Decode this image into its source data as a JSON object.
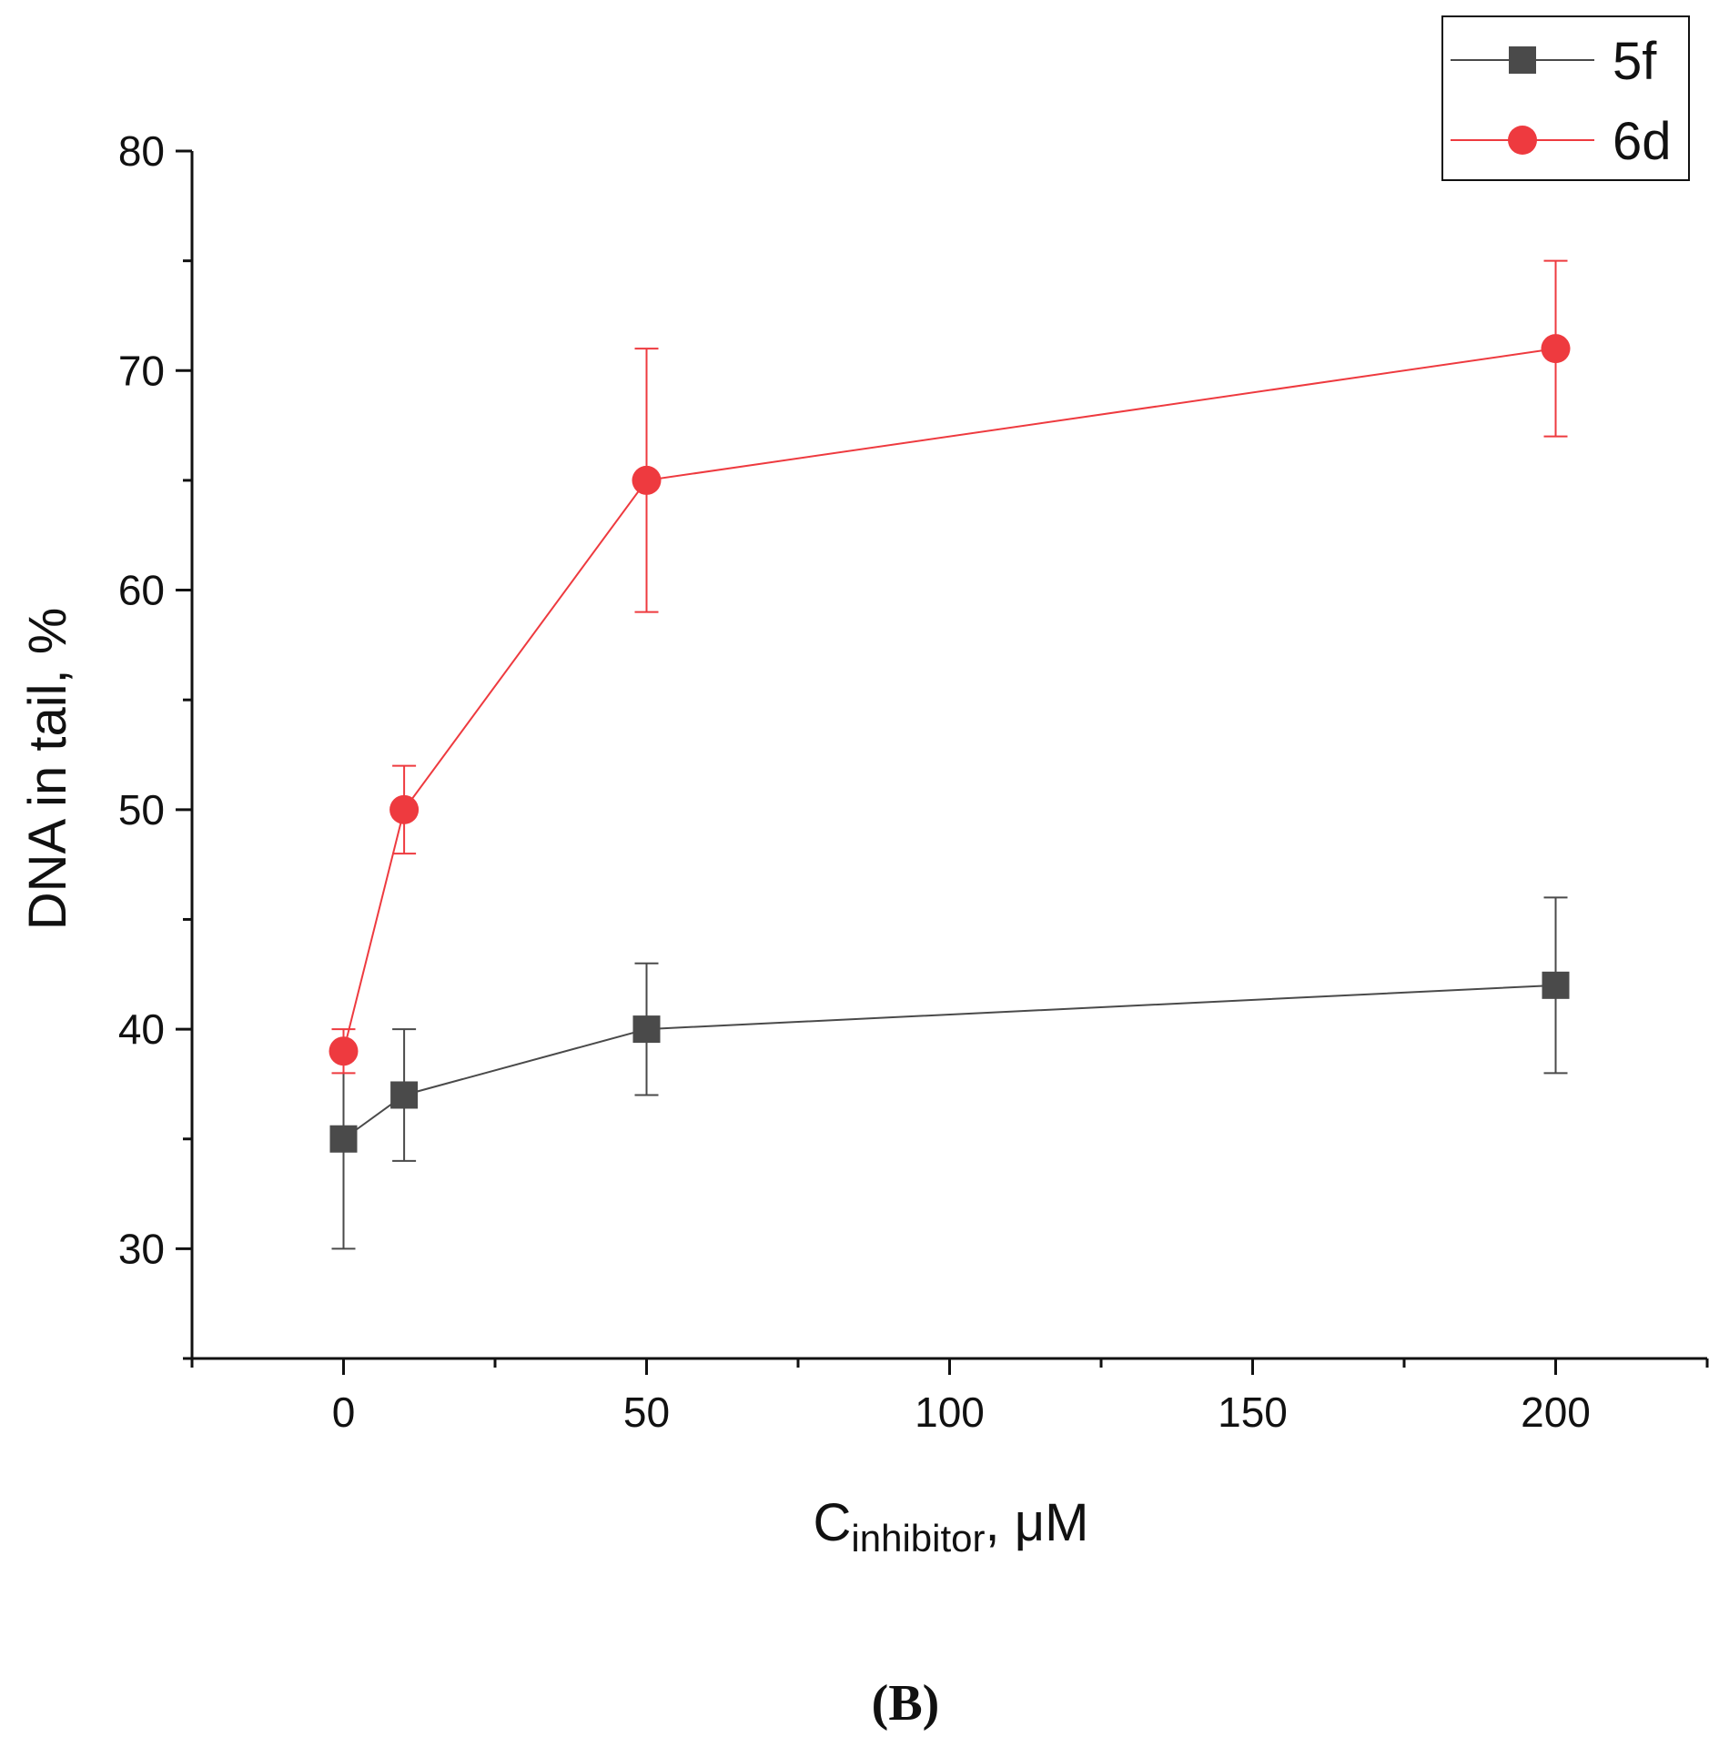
{
  "chart_data": {
    "type": "line",
    "x_label_main": "C",
    "x_label_sub": "inhibitor",
    "x_label_suffix": ", μM",
    "y_label": "DNA in tail, %",
    "panel_label": "(B)",
    "xlim": [
      -25,
      225
    ],
    "ylim": [
      25,
      80
    ],
    "x_ticks": [
      0,
      50,
      100,
      150,
      200
    ],
    "y_ticks": [
      30,
      40,
      50,
      60,
      70,
      80
    ],
    "legend_position": "top-right",
    "series": [
      {
        "name": "5f",
        "color": "#4a4a4a",
        "marker": "square",
        "x": [
          0,
          10,
          50,
          200
        ],
        "y": [
          35,
          37,
          40,
          42
        ],
        "err_low": [
          30,
          34,
          37,
          38
        ],
        "err_high": [
          39,
          40,
          43,
          46
        ]
      },
      {
        "name": "6d",
        "color": "#ee3a3f",
        "marker": "circle",
        "x": [
          0,
          10,
          50,
          200
        ],
        "y": [
          39,
          50,
          65,
          71
        ],
        "err_low": [
          38,
          48,
          59,
          67
        ],
        "err_high": [
          40,
          52,
          71,
          75
        ]
      }
    ]
  }
}
